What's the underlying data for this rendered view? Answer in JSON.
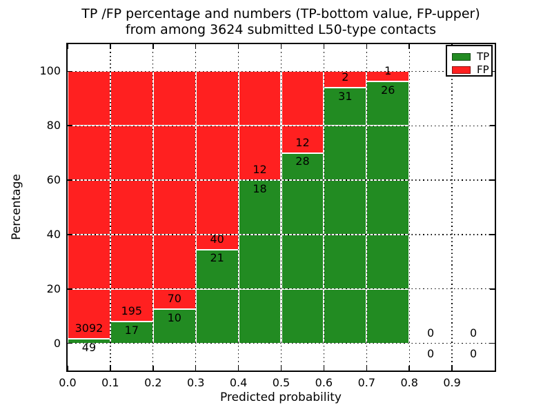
{
  "title": {
    "line1": "TP /FP percentage and numbers (TP-bottom value, FP-upper)",
    "line2": "from among 3624 submitted L50-type contacts"
  },
  "axes": {
    "xlabel": "Predicted probability",
    "ylabel": "Percentage",
    "x_tick_labels": [
      "0.0",
      "0.1",
      "0.2",
      "0.3",
      "0.4",
      "0.5",
      "0.6",
      "0.7",
      "0.8",
      "0.9"
    ],
    "y_tick_labels": [
      "0",
      "20",
      "40",
      "60",
      "80",
      "100"
    ],
    "y_tick_values": [
      0,
      20,
      40,
      60,
      80,
      100
    ],
    "x_grid_values": [
      0.1,
      0.2,
      0.3,
      0.4,
      0.5,
      0.6,
      0.7,
      0.8,
      0.9
    ],
    "xlim": [
      0,
      1
    ],
    "ylim": [
      -10,
      110
    ],
    "grid": "dotted"
  },
  "legend": {
    "items": [
      {
        "label": "TP",
        "color": "#228B22"
      },
      {
        "label": "FP",
        "color": "#FF2020"
      }
    ]
  },
  "chart_data": {
    "type": "bar",
    "stacked": true,
    "note": "stacked percentage bars; green TP portion at bottom, red FP portion above up to 100%; labels show raw counts",
    "total_contacts": 3624,
    "bin_width": 0.1,
    "categories": [
      "0.0-0.1",
      "0.1-0.2",
      "0.2-0.3",
      "0.3-0.4",
      "0.4-0.5",
      "0.5-0.6",
      "0.6-0.7",
      "0.7-0.8",
      "0.8-0.9",
      "0.9-1.0"
    ],
    "bins": [
      {
        "x0": 0.0,
        "x1": 0.1,
        "tp": 49,
        "fp": 3092
      },
      {
        "x0": 0.1,
        "x1": 0.2,
        "tp": 17,
        "fp": 195
      },
      {
        "x0": 0.2,
        "x1": 0.3,
        "tp": 10,
        "fp": 70
      },
      {
        "x0": 0.3,
        "x1": 0.4,
        "tp": 21,
        "fp": 40
      },
      {
        "x0": 0.4,
        "x1": 0.5,
        "tp": 18,
        "fp": 12
      },
      {
        "x0": 0.5,
        "x1": 0.6,
        "tp": 28,
        "fp": 12
      },
      {
        "x0": 0.6,
        "x1": 0.7,
        "tp": 31,
        "fp": 2
      },
      {
        "x0": 0.7,
        "x1": 0.8,
        "tp": 26,
        "fp": 1
      },
      {
        "x0": 0.8,
        "x1": 0.9,
        "tp": 0,
        "fp": 0
      },
      {
        "x0": 0.9,
        "x1": 1.0,
        "tp": 0,
        "fp": 0
      }
    ],
    "colors": {
      "tp": "#228B22",
      "fp": "#FF2020",
      "grid": "#000000",
      "bar_edge": "#ffffff"
    }
  }
}
